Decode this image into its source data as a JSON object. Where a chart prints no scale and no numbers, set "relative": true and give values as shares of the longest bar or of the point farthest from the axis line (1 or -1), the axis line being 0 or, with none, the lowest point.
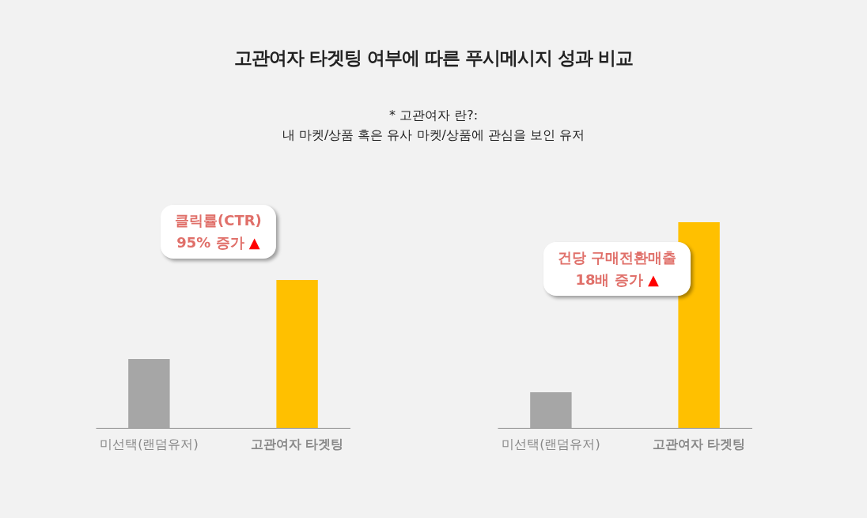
{
  "chart_data": [
    {
      "type": "bar",
      "title": "고관여자 타겟팅 여부에 따른 푸시메시지 성과 비교",
      "subtitle": "* 고관여자 란?:\n내 마켓/상품 혹은 유사 마켓/상품에 관심을 보인 유저",
      "relative": true,
      "categories": [
        "미선택(랜덤유저)",
        "고관여자 타겟팅"
      ],
      "values": [
        0.465,
        1
      ],
      "colors": [
        "#a6a6a6",
        "#ffc000"
      ],
      "annotations": [
        "클릭률(CTR)\n95% 증가 ▲"
      ]
    },
    {
      "type": "bar",
      "relative": true,
      "categories": [
        "미선택(랜덤유저)",
        "고관여자 타겟팅"
      ],
      "values": [
        0.173,
        1
      ],
      "colors": [
        "#a6a6a6",
        "#ffc000"
      ],
      "annotations": [
        "건당 구매전환매출\n18배 증가 ▲"
      ]
    }
  ]
}
